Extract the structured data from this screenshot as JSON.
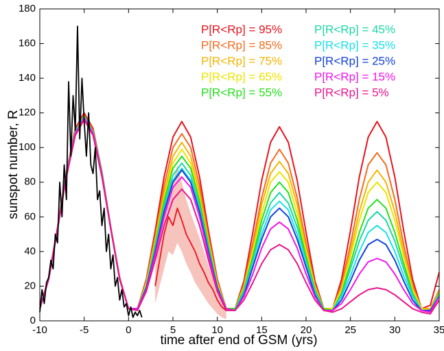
{
  "chart_data": {
    "type": "line",
    "xlabel": "time after end of GSM (yrs)",
    "ylabel": "sunspot number, R",
    "xlim": [
      -10,
      35
    ],
    "ylim": [
      0,
      180
    ],
    "xticks": [
      -10,
      -5,
      0,
      5,
      10,
      15,
      20,
      25,
      30,
      35
    ],
    "yticks": [
      0,
      20,
      40,
      60,
      80,
      100,
      120,
      140,
      160,
      180
    ],
    "x": [
      -10,
      -9,
      -8,
      -7,
      -6,
      -5,
      -4,
      -3,
      -2,
      -1,
      0,
      1,
      2,
      3,
      4,
      5,
      6,
      7,
      8,
      9,
      10,
      11,
      12,
      13,
      14,
      15,
      16,
      17,
      18,
      19,
      20,
      21,
      22,
      23,
      24,
      25,
      26,
      27,
      28,
      29,
      30,
      31,
      32,
      33,
      34,
      35
    ],
    "series": [
      {
        "name": "P[R<Rp] = 95%",
        "color": "#e8121e",
        "values": [
          7,
          25,
          54,
          86,
          111,
          120,
          111,
          86,
          54,
          25,
          7,
          7,
          24,
          52,
          83,
          106,
          115,
          106,
          83,
          52,
          24,
          7,
          7,
          23,
          51,
          81,
          103,
          112,
          103,
          81,
          51,
          23,
          7,
          7,
          24,
          52,
          83,
          106,
          115,
          106,
          83,
          52,
          24,
          7,
          9,
          28
        ]
      },
      {
        "name": "P[R<Rp] = 85%",
        "color": "#f26b1d",
        "values": [
          7,
          25,
          54,
          86,
          110,
          119,
          110,
          86,
          54,
          25,
          7,
          7,
          23,
          49,
          78,
          100,
          108,
          100,
          78,
          49,
          23,
          7,
          7,
          21,
          45,
          71,
          91,
          99,
          91,
          71,
          45,
          21,
          7,
          7,
          21,
          44,
          70,
          90,
          97,
          90,
          70,
          44,
          21,
          7,
          7,
          18
        ]
      },
      {
        "name": "P[R<Rp] = 75%",
        "color": "#f5b400",
        "values": [
          7,
          24,
          53,
          85,
          109,
          118,
          109,
          85,
          53,
          24,
          7,
          7,
          22,
          47,
          74,
          95,
          103,
          95,
          74,
          47,
          22,
          7,
          7,
          20,
          42,
          67,
          85,
          92,
          85,
          67,
          42,
          20,
          7,
          7,
          19,
          40,
          63,
          80,
          87,
          80,
          63,
          40,
          19,
          7,
          7,
          17
        ]
      },
      {
        "name": "P[R<Rp] = 65%",
        "color": "#ece400",
        "values": [
          7,
          24,
          53,
          85,
          109,
          118,
          109,
          85,
          53,
          24,
          7,
          7,
          21,
          45,
          71,
          91,
          99,
          91,
          71,
          45,
          21,
          7,
          7,
          19,
          40,
          62,
          80,
          86,
          80,
          62,
          40,
          19,
          7,
          7,
          18,
          37,
          58,
          74,
          80,
          74,
          58,
          37,
          18,
          7,
          6,
          16
        ]
      },
      {
        "name": "P[R<Rp] = 55%",
        "color": "#22e01a",
        "values": [
          7,
          24,
          53,
          85,
          109,
          118,
          109,
          85,
          53,
          24,
          7,
          7,
          20,
          44,
          69,
          88,
          95,
          88,
          69,
          44,
          20,
          7,
          7,
          18,
          37,
          58,
          74,
          80,
          74,
          58,
          37,
          18,
          7,
          6,
          16,
          33,
          51,
          65,
          70,
          65,
          51,
          33,
          16,
          6,
          6,
          16
        ]
      },
      {
        "name": "P[R<Rp] = 45%",
        "color": "#1ad7a6",
        "values": [
          7,
          24,
          53,
          85,
          109,
          118,
          109,
          85,
          53,
          24,
          7,
          7,
          20,
          42,
          66,
          84,
          91,
          84,
          66,
          42,
          20,
          7,
          6,
          17,
          35,
          54,
          68,
          74,
          68,
          54,
          35,
          17,
          6,
          6,
          15,
          30,
          46,
          58,
          63,
          58,
          46,
          30,
          15,
          6,
          6,
          15
        ]
      },
      {
        "name": "P[R<Rp] = 35%",
        "color": "#19dfe8",
        "values": [
          7,
          24,
          53,
          84,
          108,
          117,
          108,
          84,
          53,
          24,
          7,
          7,
          19,
          41,
          64,
          81,
          88,
          81,
          64,
          41,
          19,
          7,
          6,
          16,
          32,
          50,
          64,
          69,
          64,
          50,
          32,
          16,
          6,
          6,
          14,
          26,
          40,
          51,
          55,
          51,
          40,
          26,
          14,
          6,
          6,
          15
        ]
      },
      {
        "name": "P[R<Rp] = 25%",
        "color": "#1140d8",
        "values": [
          7,
          24,
          53,
          84,
          108,
          117,
          108,
          84,
          53,
          24,
          7,
          7,
          19,
          40,
          63,
          80,
          87,
          80,
          63,
          40,
          19,
          7,
          6,
          15,
          31,
          47,
          60,
          65,
          60,
          47,
          31,
          15,
          6,
          6,
          12,
          23,
          35,
          44,
          47,
          44,
          35,
          23,
          12,
          6,
          6,
          14
        ]
      },
      {
        "name": "P[R<Rp] = 15%",
        "color": "#f015e8",
        "values": [
          7,
          24,
          53,
          84,
          108,
          117,
          108,
          84,
          53,
          24,
          7,
          7,
          18,
          38,
          60,
          77,
          83,
          77,
          60,
          38,
          18,
          7,
          6,
          14,
          27,
          42,
          53,
          57,
          53,
          42,
          27,
          14,
          6,
          6,
          10,
          18,
          27,
          34,
          36,
          34,
          27,
          18,
          10,
          6,
          5,
          14
        ]
      },
      {
        "name": "P[R<Rp] = 5%",
        "color": "#e8148c",
        "values": [
          7,
          24,
          53,
          83,
          107,
          116,
          107,
          83,
          53,
          24,
          7,
          6,
          17,
          35,
          55,
          70,
          76,
          70,
          55,
          35,
          17,
          6,
          6,
          12,
          22,
          33,
          41,
          44,
          41,
          33,
          22,
          12,
          6,
          5,
          7,
          11,
          15,
          18,
          19,
          18,
          15,
          11,
          7,
          5,
          4,
          12
        ]
      }
    ],
    "history": {
      "color": "#000000",
      "x": [
        -10,
        -9.75,
        -9.5,
        -9.25,
        -9,
        -8.75,
        -8.5,
        -8.25,
        -8,
        -7.75,
        -7.5,
        -7.25,
        -7,
        -6.75,
        -6.5,
        -6.25,
        -6,
        -5.75,
        -5.5,
        -5.25,
        -5,
        -4.75,
        -4.5,
        -4.25,
        -4,
        -3.75,
        -3.5,
        -3.25,
        -3,
        -2.75,
        -2.5,
        -2.25,
        -2,
        -1.75,
        -1.5,
        -1.25,
        -1,
        -0.75,
        -0.5,
        -0.25,
        0,
        0.25,
        0.5,
        0.75,
        1,
        1.25,
        1.5
      ],
      "values": [
        5,
        18,
        10,
        22,
        25,
        35,
        30,
        50,
        45,
        80,
        60,
        90,
        70,
        138,
        95,
        130,
        110,
        170,
        105,
        140,
        115,
        95,
        120,
        90,
        85,
        100,
        70,
        75,
        55,
        65,
        40,
        50,
        30,
        38,
        20,
        25,
        12,
        18,
        8,
        10,
        3,
        8,
        2,
        5,
        3,
        6,
        2
      ]
    },
    "observed": {
      "color": "#e8121e",
      "band_color": "#f7c3bd",
      "x": [
        3,
        3.5,
        4,
        4.5,
        5,
        5.5,
        6,
        6.5,
        7,
        7.5,
        8,
        8.5,
        9,
        9.5,
        10,
        10.5,
        11
      ],
      "values": [
        20,
        35,
        50,
        60,
        55,
        65,
        58,
        50,
        45,
        40,
        33,
        28,
        22,
        18,
        12,
        8,
        6
      ],
      "band_low": [
        10,
        20,
        30,
        40,
        38,
        45,
        40,
        33,
        28,
        22,
        18,
        14,
        10,
        7,
        4,
        2,
        1
      ],
      "band_high": [
        30,
        50,
        70,
        85,
        80,
        90,
        80,
        70,
        62,
        55,
        48,
        40,
        32,
        25,
        18,
        12,
        10
      ]
    }
  }
}
